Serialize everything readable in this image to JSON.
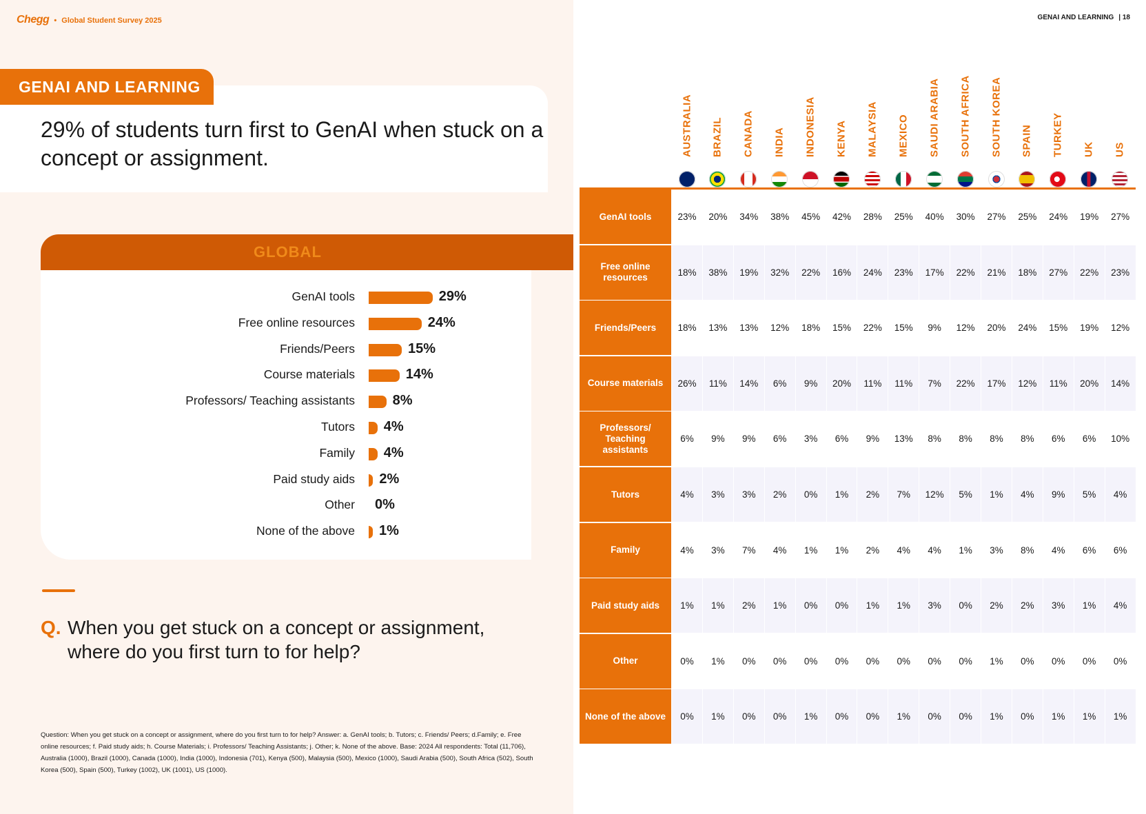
{
  "brand": {
    "logo": "Chegg",
    "separator": "•",
    "survey": "Global Student Survey 2025"
  },
  "section": {
    "label": "GENAI AND LEARNING"
  },
  "headline": "29% of students turn first to GenAI when stuck on a concept or assignment.",
  "page_ref": {
    "section": "GENAI AND LEARNING",
    "page": "| 18"
  },
  "global_panel": {
    "title": "GLOBAL",
    "bars": [
      {
        "label": "GenAI tools",
        "value": 29,
        "display": "29%"
      },
      {
        "label": "Free online resources",
        "value": 24,
        "display": "24%"
      },
      {
        "label": "Friends/Peers",
        "value": 15,
        "display": "15%"
      },
      {
        "label": "Course materials",
        "value": 14,
        "display": "14%"
      },
      {
        "label": "Professors/ Teaching assistants",
        "value": 8,
        "display": "8%"
      },
      {
        "label": "Tutors",
        "value": 4,
        "display": "4%"
      },
      {
        "label": "Family",
        "value": 4,
        "display": "4%"
      },
      {
        "label": "Paid study aids",
        "value": 2,
        "display": "2%"
      },
      {
        "label": "Other",
        "value": 0,
        "display": "0%"
      },
      {
        "label": "None of the above",
        "value": 1,
        "display": "1%"
      }
    ]
  },
  "question": {
    "marker": "Q.",
    "text": "When you get stuck on a concept or assignment, where do you first turn to for help?"
  },
  "footnote": "Question: When you get stuck on a concept or assignment, where do you first turn to for help? Answer: a. GenAI tools; b. Tutors; c. Friends/ Peers; d.Family; e. Free online resources; f. Paid study aids; h. Course Materials; i. Professors/ Teaching Assistants; j. Other; k. None of the above. Base: 2024 All respondents: Total (11,706), Australia (1000), Brazil (1000), Canada (1000), India (1000), Indonesia (701), Kenya (500), Malaysia (500), Mexico (1000), Saudi Arabia (500), South Africa (502), South Korea (500), Spain (500), Turkey (1002), UK (1001), US (1000).",
  "table": {
    "countries": [
      {
        "name": "AUSTRALIA",
        "flag": "australia-flag-icon"
      },
      {
        "name": "BRAZIL",
        "flag": "brazil-flag-icon"
      },
      {
        "name": "CANADA",
        "flag": "canada-flag-icon"
      },
      {
        "name": "INDIA",
        "flag": "india-flag-icon"
      },
      {
        "name": "INDONESIA",
        "flag": "indonesia-flag-icon"
      },
      {
        "name": "KENYA",
        "flag": "kenya-flag-icon"
      },
      {
        "name": "MALAYSIA",
        "flag": "malaysia-flag-icon"
      },
      {
        "name": "MEXICO",
        "flag": "mexico-flag-icon"
      },
      {
        "name": "SAUDI ARABIA",
        "flag": "saudi-arabia-flag-icon"
      },
      {
        "name": "SOUTH AFRICA",
        "flag": "south-africa-flag-icon"
      },
      {
        "name": "SOUTH KOREA",
        "flag": "south-korea-flag-icon"
      },
      {
        "name": "SPAIN",
        "flag": "spain-flag-icon"
      },
      {
        "name": "TURKEY",
        "flag": "turkey-flag-icon"
      },
      {
        "name": "UK",
        "flag": "uk-flag-icon"
      },
      {
        "name": "US",
        "flag": "us-flag-icon"
      }
    ],
    "rows": [
      {
        "label": "GenAI tools",
        "values": [
          "23%",
          "20%",
          "34%",
          "38%",
          "45%",
          "42%",
          "28%",
          "25%",
          "40%",
          "30%",
          "27%",
          "25%",
          "24%",
          "19%",
          "27%"
        ]
      },
      {
        "label": "Free online resources",
        "values": [
          "18%",
          "38%",
          "19%",
          "32%",
          "22%",
          "16%",
          "24%",
          "23%",
          "17%",
          "22%",
          "21%",
          "18%",
          "27%",
          "22%",
          "23%"
        ]
      },
      {
        "label": "Friends/Peers",
        "values": [
          "18%",
          "13%",
          "13%",
          "12%",
          "18%",
          "15%",
          "22%",
          "15%",
          "9%",
          "12%",
          "20%",
          "24%",
          "15%",
          "19%",
          "12%"
        ]
      },
      {
        "label": "Course materials",
        "values": [
          "26%",
          "11%",
          "14%",
          "6%",
          "9%",
          "20%",
          "11%",
          "11%",
          "7%",
          "22%",
          "17%",
          "12%",
          "11%",
          "20%",
          "14%"
        ]
      },
      {
        "label": "Professors/ Teaching assistants",
        "values": [
          "6%",
          "9%",
          "9%",
          "6%",
          "3%",
          "6%",
          "9%",
          "13%",
          "8%",
          "8%",
          "8%",
          "8%",
          "6%",
          "6%",
          "10%"
        ]
      },
      {
        "label": "Tutors",
        "values": [
          "4%",
          "3%",
          "3%",
          "2%",
          "0%",
          "1%",
          "2%",
          "7%",
          "12%",
          "5%",
          "1%",
          "4%",
          "9%",
          "5%",
          "4%"
        ]
      },
      {
        "label": "Family",
        "values": [
          "4%",
          "3%",
          "7%",
          "4%",
          "1%",
          "1%",
          "2%",
          "4%",
          "4%",
          "1%",
          "3%",
          "8%",
          "4%",
          "6%",
          "6%"
        ]
      },
      {
        "label": "Paid study aids",
        "values": [
          "1%",
          "1%",
          "2%",
          "1%",
          "0%",
          "0%",
          "1%",
          "1%",
          "3%",
          "0%",
          "2%",
          "2%",
          "3%",
          "1%",
          "4%"
        ]
      },
      {
        "label": "Other",
        "values": [
          "0%",
          "1%",
          "0%",
          "0%",
          "0%",
          "0%",
          "0%",
          "0%",
          "0%",
          "0%",
          "1%",
          "0%",
          "0%",
          "0%",
          "0%"
        ]
      },
      {
        "label": "None of the above",
        "values": [
          "0%",
          "1%",
          "0%",
          "0%",
          "1%",
          "0%",
          "0%",
          "1%",
          "0%",
          "0%",
          "1%",
          "0%",
          "1%",
          "1%",
          "1%"
        ]
      }
    ]
  },
  "chart_data": {
    "type": "bar",
    "title": "GLOBAL",
    "orientation": "horizontal",
    "categories": [
      "GenAI tools",
      "Free online resources",
      "Friends/Peers",
      "Course materials",
      "Professors/ Teaching assistants",
      "Tutors",
      "Family",
      "Paid study aids",
      "Other",
      "None of the above"
    ],
    "values": [
      29,
      24,
      15,
      14,
      8,
      4,
      4,
      2,
      0,
      1
    ],
    "xlabel": "",
    "ylabel": "",
    "unit": "%"
  },
  "colors": {
    "accent": "#e8710a",
    "accent_dark": "#cf5a05",
    "panel_bg": "#fdf4ee",
    "band_bg": "#f4f3fb"
  }
}
